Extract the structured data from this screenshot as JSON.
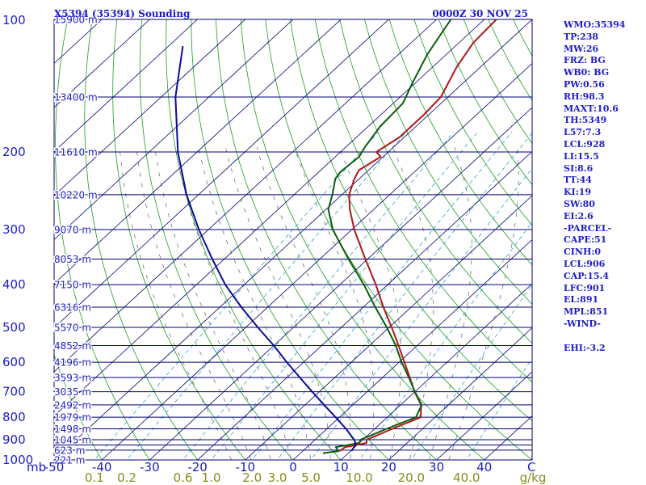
{
  "chart_data": {
    "type": "skew-t",
    "title_left": "X5394 (35394) Sounding",
    "title_right": "0000Z 30 NOV 25",
    "x_unit_label": "C",
    "mixing_unit_label": "g/kg",
    "pressure_unit_label": "mb",
    "xlim": [
      -50,
      50
    ],
    "ylim_mb": [
      1000,
      100
    ],
    "pressure_ticks": [
      100,
      200,
      300,
      400,
      500,
      600,
      700,
      800,
      900,
      1000
    ],
    "pressure_tick_labels": [
      "100",
      "200",
      "300",
      "400",
      "500",
      "600",
      "700",
      "800",
      "900",
      "1000"
    ],
    "temp_ticks": [
      -50,
      -40,
      -30,
      -20,
      -10,
      0,
      10,
      20,
      30,
      40
    ],
    "temp_tick_labels": [
      "-50",
      "-40",
      "-30",
      "-20",
      "-10",
      "0",
      "10",
      "20",
      "30",
      "40"
    ],
    "isobar_levels": [
      100,
      150,
      200,
      250,
      300,
      350,
      400,
      450,
      500,
      550,
      600,
      650,
      700,
      750,
      800,
      850,
      900,
      925,
      950,
      1000
    ],
    "height_labels": [
      {
        "p": 100,
        "text": "15900 m"
      },
      {
        "p": 150,
        "text": "13400 m"
      },
      {
        "p": 200,
        "text": "11610 m"
      },
      {
        "p": 250,
        "text": "10220 m"
      },
      {
        "p": 300,
        "text": "9070 m"
      },
      {
        "p": 350,
        "text": "8053 m"
      },
      {
        "p": 400,
        "text": "7150 m"
      },
      {
        "p": 450,
        "text": "6316 m"
      },
      {
        "p": 500,
        "text": "5570 m"
      },
      {
        "p": 550,
        "text": "4852 m"
      },
      {
        "p": 600,
        "text": "4196 m"
      },
      {
        "p": 650,
        "text": "3593 m"
      },
      {
        "p": 700,
        "text": "3035 m"
      },
      {
        "p": 750,
        "text": "2492 m"
      },
      {
        "p": 800,
        "text": "1979 m"
      },
      {
        "p": 850,
        "text": "1498 m"
      },
      {
        "p": 900,
        "text": "1045 m"
      },
      {
        "p": 950,
        "text": "623 m"
      },
      {
        "p": 1000,
        "text": "221 m"
      }
    ],
    "mixing_ratio_labels": [
      {
        "value": 0.1,
        "text": "0.1"
      },
      {
        "value": 0.2,
        "text": "0.2"
      },
      {
        "value": 0.6,
        "text": "0.6"
      },
      {
        "value": 1.0,
        "text": "1.0"
      },
      {
        "value": 2.0,
        "text": "2.0"
      },
      {
        "value": 3.0,
        "text": "3.0"
      },
      {
        "value": 5.0,
        "text": "5.0"
      },
      {
        "value": 10.0,
        "text": "10.0"
      },
      {
        "value": 20.0,
        "text": "20.0"
      },
      {
        "value": 40.0,
        "text": "40.0"
      }
    ],
    "mixing_ratio_lines": [
      0.1,
      0.2,
      0.6,
      1.0,
      2.0,
      3.0,
      5.0,
      10.0,
      20.0,
      40.0
    ],
    "dry_adiabats_theta_c": [
      -40,
      -30,
      -20,
      -10,
      0,
      10,
      20,
      30,
      40,
      50,
      60,
      70,
      80,
      90,
      100,
      110,
      120,
      130,
      140,
      150,
      160,
      170,
      180,
      190,
      200
    ],
    "moist_adiabats_c": [
      -10,
      -6,
      -2,
      2,
      6,
      10,
      14,
      18,
      22,
      26,
      30,
      34
    ],
    "series": [
      {
        "name": "Temperature",
        "color": "#b01818",
        "points": [
          [
            955,
            7.7
          ],
          [
            935,
            8.0
          ],
          [
            915,
            11.5
          ],
          [
            900,
            10.8
          ],
          [
            850,
            13.7
          ],
          [
            800,
            17.0
          ],
          [
            750,
            14.3
          ],
          [
            700,
            9.9
          ],
          [
            650,
            5.7
          ],
          [
            600,
            1.1
          ],
          [
            550,
            -3.9
          ],
          [
            500,
            -9.5
          ],
          [
            450,
            -15.8
          ],
          [
            400,
            -22.5
          ],
          [
            350,
            -30.5
          ],
          [
            300,
            -39.5
          ],
          [
            270,
            -45.0
          ],
          [
            250,
            -48.5
          ],
          [
            230,
            -51.0
          ],
          [
            220,
            -52.0
          ],
          [
            205,
            -50.5
          ],
          [
            200,
            -52.5
          ],
          [
            185,
            -51.0
          ],
          [
            165,
            -51.0
          ],
          [
            150,
            -51.5
          ],
          [
            128,
            -55.0
          ],
          [
            113,
            -57.0
          ],
          [
            100,
            -57.5
          ]
        ]
      },
      {
        "name": "Dewpoint",
        "color": "#0c5c0c",
        "points": [
          [
            965,
            4.7
          ],
          [
            955,
            7.5
          ],
          [
            935,
            6.0
          ],
          [
            915,
            10.0
          ],
          [
            900,
            9.5
          ],
          [
            850,
            12.5
          ],
          [
            800,
            16.0
          ],
          [
            750,
            14.4
          ],
          [
            700,
            10.0
          ],
          [
            650,
            5.5
          ],
          [
            600,
            0.5
          ],
          [
            550,
            -4.5
          ],
          [
            500,
            -10.5
          ],
          [
            450,
            -17.5
          ],
          [
            400,
            -25.0
          ],
          [
            350,
            -34.0
          ],
          [
            300,
            -44.0
          ],
          [
            270,
            -49.5
          ],
          [
            250,
            -52.0
          ],
          [
            230,
            -55.0
          ],
          [
            222,
            -55.5
          ],
          [
            205,
            -55.0
          ],
          [
            195,
            -56.0
          ],
          [
            175,
            -57.5
          ],
          [
            155,
            -58.0
          ],
          [
            140,
            -60.5
          ],
          [
            120,
            -64.0
          ],
          [
            100,
            -67.0
          ]
        ]
      },
      {
        "name": "Parcel",
        "color": "#0c0c9a",
        "points": [
          [
            955,
            10.2
          ],
          [
            920,
            9.5
          ],
          [
            900,
            8.2
          ],
          [
            850,
            4.0
          ],
          [
            800,
            -0.8
          ],
          [
            750,
            -6.0
          ],
          [
            700,
            -11.5
          ],
          [
            650,
            -17.3
          ],
          [
            600,
            -23.5
          ],
          [
            550,
            -30.0
          ],
          [
            500,
            -37.5
          ],
          [
            450,
            -45.5
          ],
          [
            400,
            -54.0
          ],
          [
            350,
            -62.5
          ],
          [
            300,
            -72.0
          ],
          [
            250,
            -82.5
          ],
          [
            200,
            -94.0
          ],
          [
            150,
            -107.0
          ],
          [
            115,
            -117.0
          ]
        ]
      }
    ]
  },
  "indices": [
    "WMO:35394",
    "TP:238",
    "MW:26",
    "FRZ: BG",
    "WB0: BG",
    "PW:0.56",
    "RH:98.3",
    "MAXT:10.6",
    "TH:5349",
    "L57:7.3",
    "LCL:928",
    "LI:15.5",
    "SI:8.6",
    "TT:44",
    "KI:19",
    "SW:80",
    "EI:2.6",
    "-PARCEL-",
    "CAPE:51",
    "CINH:0",
    "LCL:906",
    "CAP:15.4",
    "LFC:901",
    "EL:891",
    "MPL:851",
    "-WIND-",
    "",
    "EHI:-3.2"
  ],
  "colors": {
    "frame": "#000070",
    "isobar": "#000070",
    "isotherm": "#000070",
    "dry_adiabat": "#18a018",
    "moist_adiabat": "#606060",
    "mixing_ratio": "#30a0d0",
    "label_blue": "#1c1ccc",
    "label_olive": "#8b8b1a"
  }
}
